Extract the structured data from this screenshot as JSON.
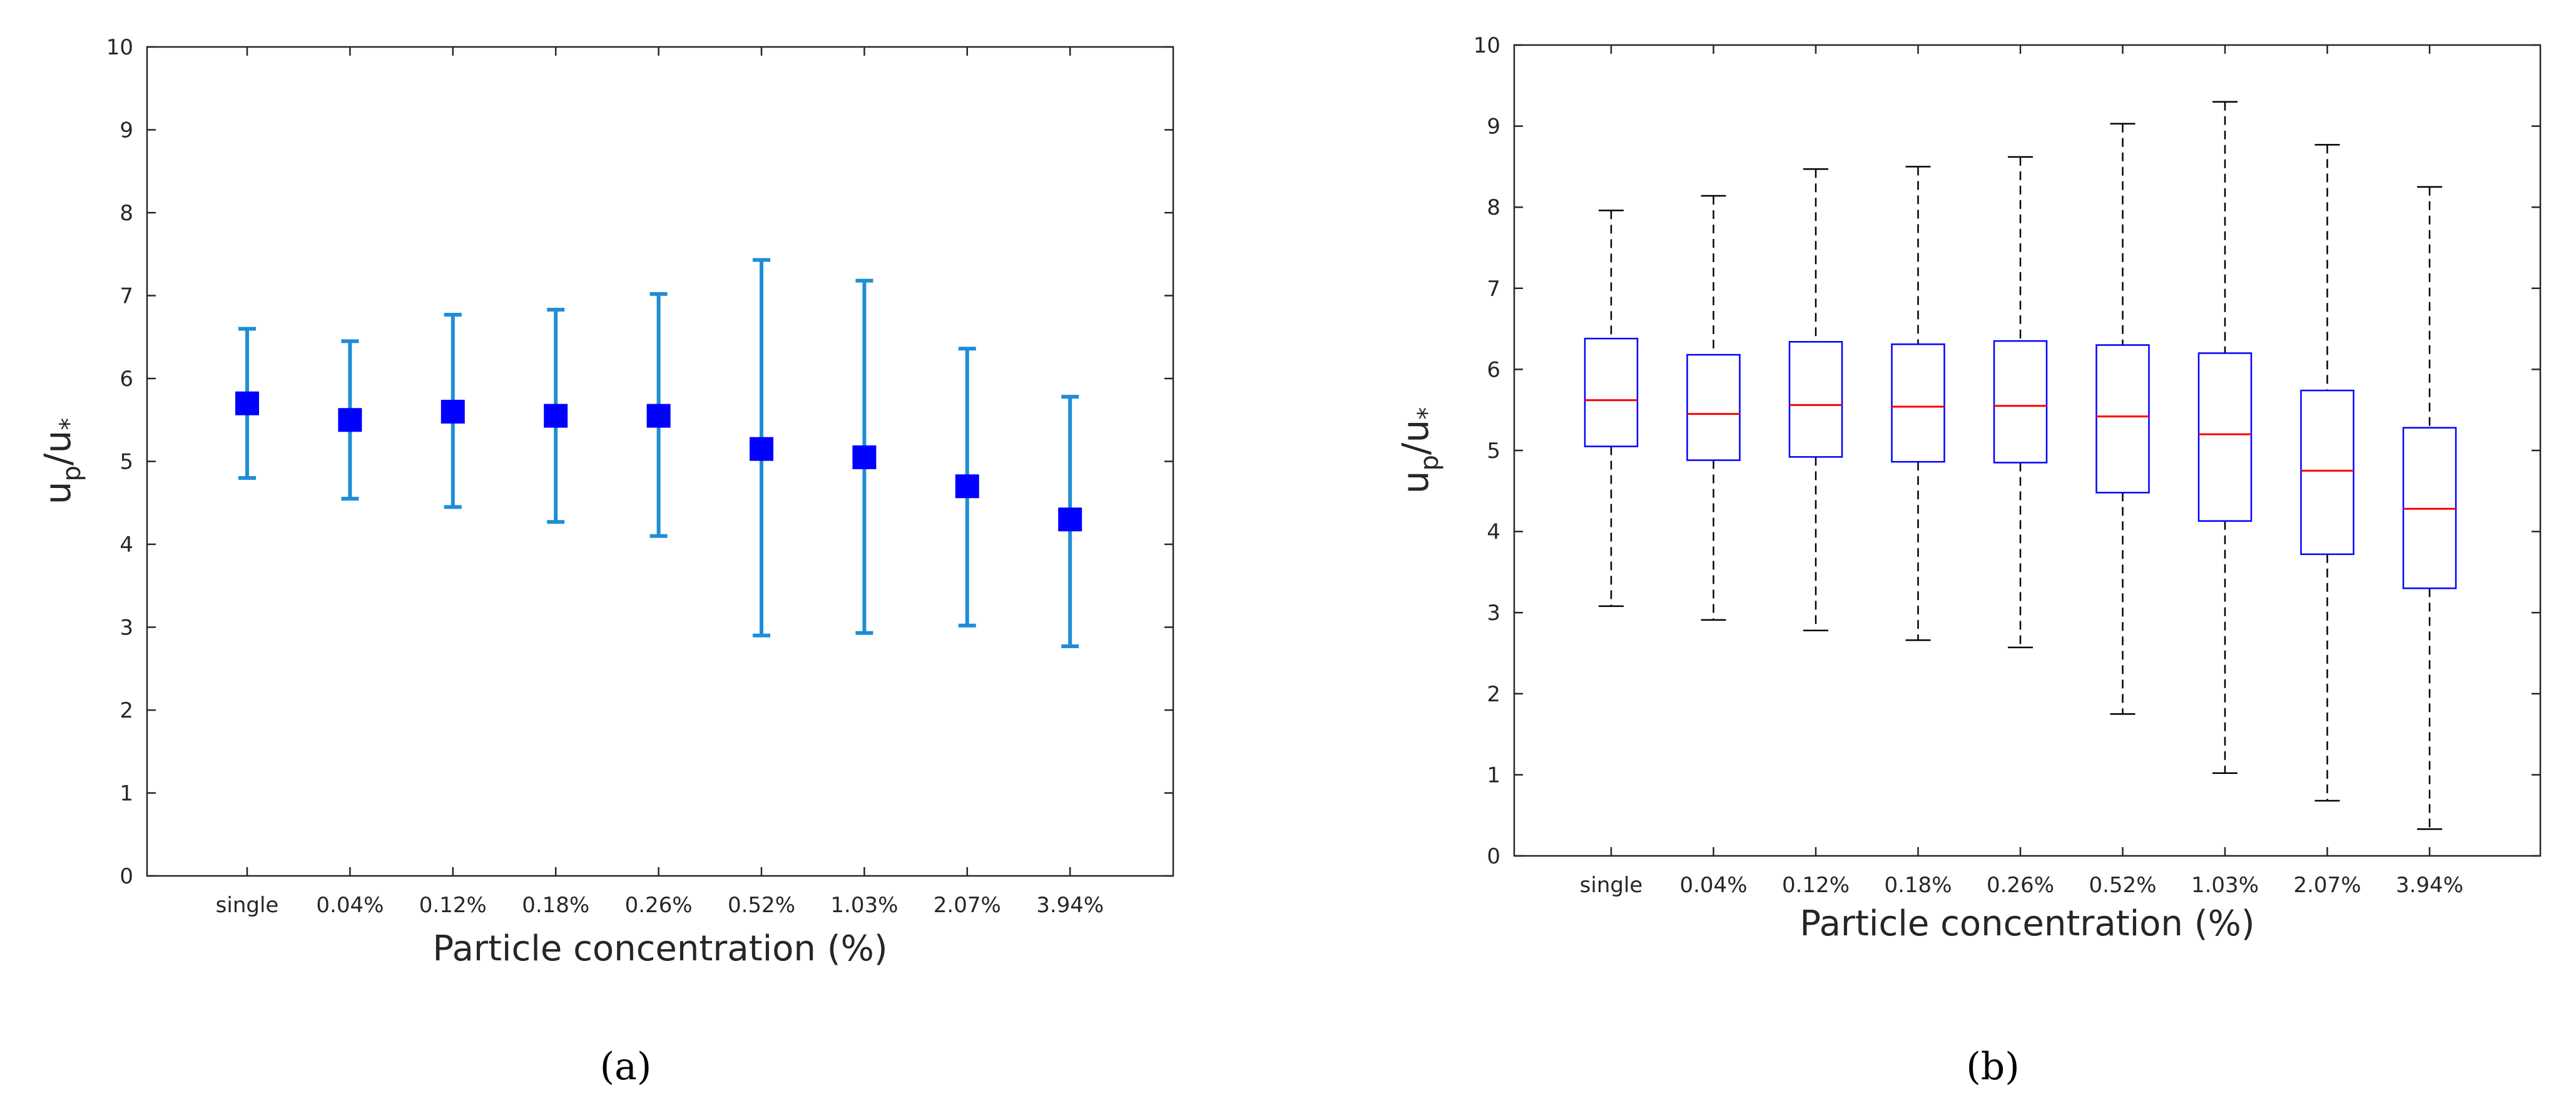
{
  "chart_data": [
    {
      "panel_label": "(a)",
      "type": "scatter",
      "subtype": "errorbar",
      "categories": [
        "single",
        "0.04%",
        "0.12%",
        "0.18%",
        "0.26%",
        "0.52%",
        "1.03%",
        "2.07%",
        "3.94%"
      ],
      "series": [
        {
          "name": "mean",
          "values": [
            5.7,
            5.5,
            5.6,
            5.55,
            5.55,
            5.15,
            5.05,
            4.7,
            4.3
          ],
          "lower": [
            4.8,
            4.55,
            4.45,
            4.27,
            4.1,
            2.9,
            2.93,
            3.02,
            2.77
          ],
          "upper": [
            6.6,
            6.45,
            6.77,
            6.83,
            7.02,
            7.43,
            7.18,
            6.36,
            5.78
          ]
        }
      ],
      "xlabel": "Particle concentration (%)",
      "ylabel": {
        "main": "u",
        "sub1": "p",
        "slash": "/u",
        "sub2": "*"
      },
      "ylim": [
        0,
        10
      ],
      "yticks": [
        "0",
        "1",
        "2",
        "3",
        "4",
        "5",
        "6",
        "7",
        "8",
        "9",
        "10"
      ],
      "colors": {
        "marker": "#0000ff",
        "errorbar": "#1f8dd6"
      }
    },
    {
      "panel_label": "(b)",
      "type": "box",
      "categories": [
        "single",
        "0.04%",
        "0.12%",
        "0.18%",
        "0.26%",
        "0.52%",
        "1.03%",
        "2.07%",
        "3.94%"
      ],
      "boxes": [
        {
          "min": 3.08,
          "q1": 5.05,
          "median": 5.62,
          "q3": 6.38,
          "max": 7.96
        },
        {
          "min": 2.91,
          "q1": 4.88,
          "median": 5.45,
          "q3": 6.18,
          "max": 8.14
        },
        {
          "min": 2.78,
          "q1": 4.92,
          "median": 5.56,
          "q3": 6.34,
          "max": 8.47
        },
        {
          "min": 2.66,
          "q1": 4.86,
          "median": 5.54,
          "q3": 6.31,
          "max": 8.5
        },
        {
          "min": 2.57,
          "q1": 4.85,
          "median": 5.55,
          "q3": 6.35,
          "max": 8.62
        },
        {
          "min": 1.75,
          "q1": 4.48,
          "median": 5.42,
          "q3": 6.3,
          "max": 9.03
        },
        {
          "min": 1.02,
          "q1": 4.13,
          "median": 5.2,
          "q3": 6.2,
          "max": 9.3
        },
        {
          "min": 0.68,
          "q1": 3.72,
          "median": 4.75,
          "q3": 5.74,
          "max": 8.77
        },
        {
          "min": 0.33,
          "q1": 3.3,
          "median": 4.28,
          "q3": 5.28,
          "max": 8.25
        }
      ],
      "xlabel": "Particle concentration (%)",
      "ylabel": {
        "main": "u",
        "sub1": "p",
        "slash": "/u",
        "sub2": "*"
      },
      "ylim": [
        0,
        10
      ],
      "yticks": [
        "0",
        "1",
        "2",
        "3",
        "4",
        "5",
        "6",
        "7",
        "8",
        "9",
        "10"
      ],
      "colors": {
        "box": "#0000ff",
        "median": "#ff0000",
        "whisker": "#000000"
      }
    }
  ]
}
